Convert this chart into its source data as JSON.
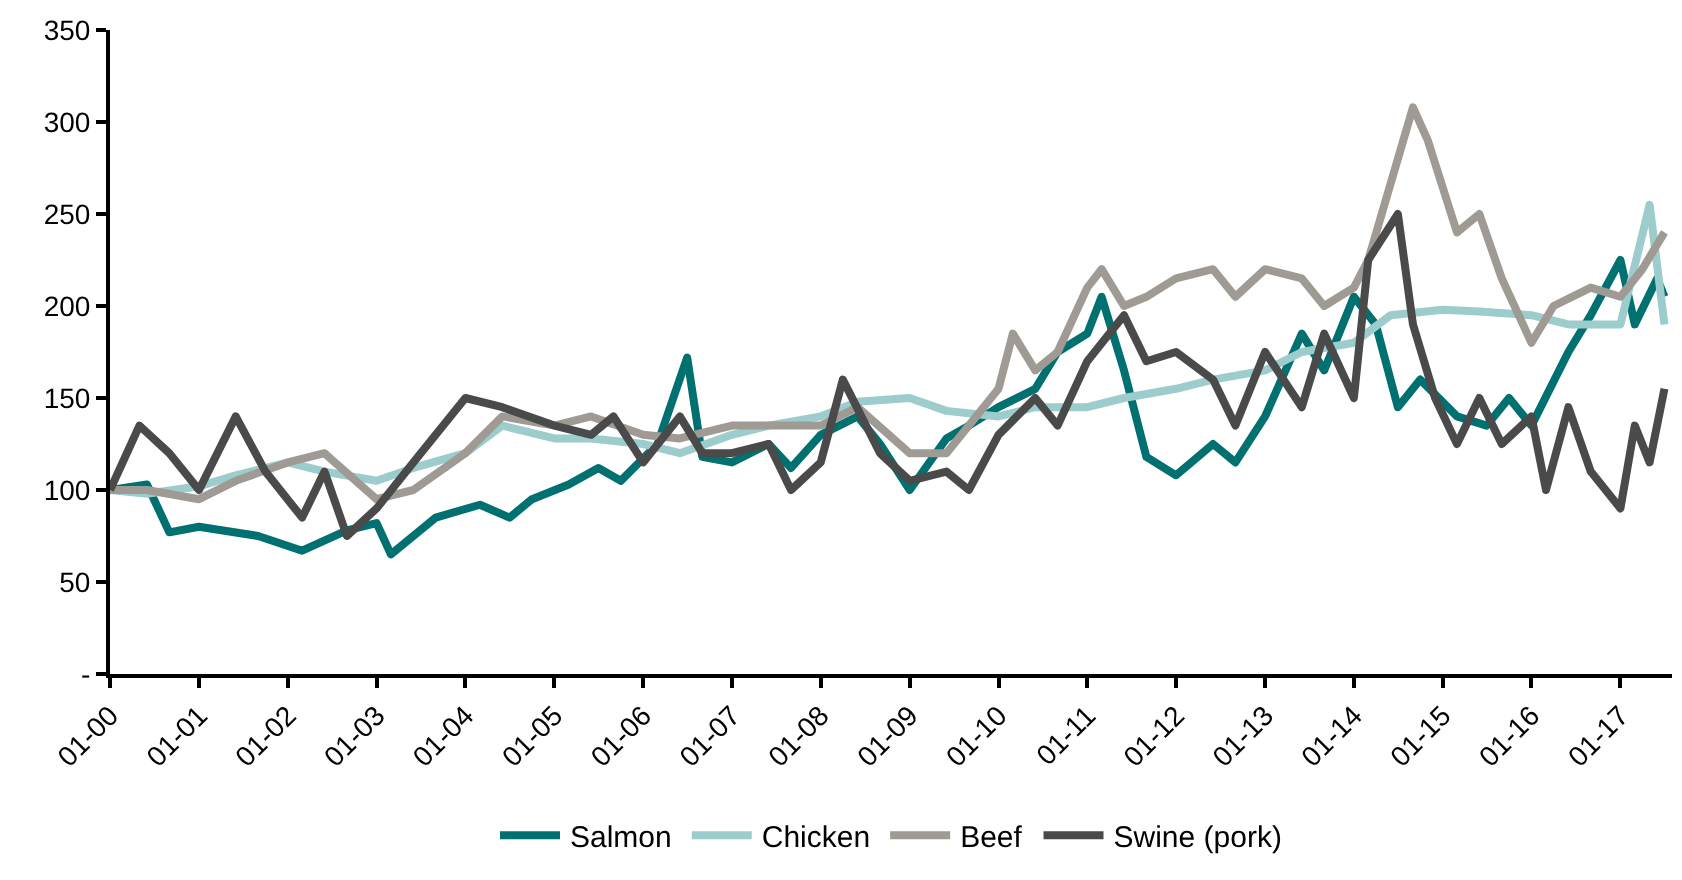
{
  "chart_data": {
    "type": "line",
    "legend": "bottom",
    "marker": "none",
    "line_style": "solid",
    "xlim": [
      "2000-01",
      "2017-08"
    ],
    "xticks": [
      {
        "value": "2000-01",
        "label": "01-00"
      },
      {
        "value": "2001-01",
        "label": "01-01"
      },
      {
        "value": "2002-01",
        "label": "01-02"
      },
      {
        "value": "2003-01",
        "label": "01-03"
      },
      {
        "value": "2004-01",
        "label": "01-04"
      },
      {
        "value": "2005-01",
        "label": "01-05"
      },
      {
        "value": "2006-01",
        "label": "01-06"
      },
      {
        "value": "2007-01",
        "label": "01-07"
      },
      {
        "value": "2008-01",
        "label": "01-08"
      },
      {
        "value": "2009-01",
        "label": "01-09"
      },
      {
        "value": "2010-01",
        "label": "01-10"
      },
      {
        "value": "2011-01",
        "label": "01-11"
      },
      {
        "value": "2012-01",
        "label": "01-12"
      },
      {
        "value": "2013-01",
        "label": "01-13"
      },
      {
        "value": "2014-01",
        "label": "01-14"
      },
      {
        "value": "2015-01",
        "label": "01-15"
      },
      {
        "value": "2016-01",
        "label": "01-16"
      },
      {
        "value": "2017-01",
        "label": "01-17"
      }
    ],
    "ylim": [
      0,
      350
    ],
    "yticks": [
      {
        "value": 0,
        "label": "-"
      },
      50,
      100,
      150,
      200,
      250,
      300,
      350
    ],
    "series": [
      {
        "name": "Salmon",
        "color": "#007070",
        "x": [
          "2000-01",
          "2000-06",
          "2000-09",
          "2001-01",
          "2001-09",
          "2002-03",
          "2002-09",
          "2003-01",
          "2003-03",
          "2003-09",
          "2004-03",
          "2004-07",
          "2004-10",
          "2005-03",
          "2005-07",
          "2005-10",
          "2006-03",
          "2006-07",
          "2006-09",
          "2007-01",
          "2007-06",
          "2007-09",
          "2008-01",
          "2008-06",
          "2008-09",
          "2009-01",
          "2009-06",
          "2009-09",
          "2010-01",
          "2010-06",
          "2010-09",
          "2011-01",
          "2011-03",
          "2011-06",
          "2011-09",
          "2012-01",
          "2012-06",
          "2012-09",
          "2013-01",
          "2013-06",
          "2013-09",
          "2014-01",
          "2014-04",
          "2014-07",
          "2014-10",
          "2015-03",
          "2015-07",
          "2015-10",
          "2016-01",
          "2016-06",
          "2016-09",
          "2017-01",
          "2017-03",
          "2017-06",
          "2017-07"
        ],
        "values": [
          100,
          103,
          77,
          80,
          75,
          67,
          78,
          82,
          65,
          85,
          92,
          85,
          95,
          103,
          112,
          105,
          125,
          172,
          118,
          115,
          125,
          112,
          130,
          140,
          125,
          100,
          128,
          135,
          145,
          155,
          175,
          185,
          205,
          165,
          118,
          108,
          125,
          115,
          140,
          185,
          165,
          205,
          190,
          145,
          160,
          140,
          135,
          150,
          135,
          175,
          195,
          225,
          190,
          215,
          205
        ]
      },
      {
        "name": "Chicken",
        "color": "#9ccccc",
        "x": [
          "2000-01",
          "2000-06",
          "2001-01",
          "2001-06",
          "2002-01",
          "2002-06",
          "2003-01",
          "2003-06",
          "2004-01",
          "2004-06",
          "2005-01",
          "2005-06",
          "2006-01",
          "2006-06",
          "2007-01",
          "2007-06",
          "2008-01",
          "2008-06",
          "2009-01",
          "2009-06",
          "2010-01",
          "2010-06",
          "2011-01",
          "2011-06",
          "2012-01",
          "2012-06",
          "2013-01",
          "2013-06",
          "2014-01",
          "2014-06",
          "2015-01",
          "2015-06",
          "2016-01",
          "2016-06",
          "2017-01",
          "2017-05",
          "2017-07"
        ],
        "values": [
          100,
          98,
          102,
          108,
          115,
          110,
          105,
          112,
          120,
          135,
          128,
          128,
          125,
          120,
          130,
          135,
          140,
          148,
          150,
          143,
          140,
          145,
          145,
          150,
          155,
          160,
          165,
          175,
          180,
          195,
          198,
          197,
          195,
          190,
          190,
          255,
          190
        ]
      },
      {
        "name": "Beef",
        "color": "#a09a94",
        "x": [
          "2000-01",
          "2000-06",
          "2001-01",
          "2001-06",
          "2002-01",
          "2002-06",
          "2003-01",
          "2003-06",
          "2004-01",
          "2004-06",
          "2005-01",
          "2005-06",
          "2006-01",
          "2006-06",
          "2007-01",
          "2007-06",
          "2008-01",
          "2008-06",
          "2009-01",
          "2009-06",
          "2010-01",
          "2010-03",
          "2010-06",
          "2010-09",
          "2011-01",
          "2011-03",
          "2011-06",
          "2011-09",
          "2012-01",
          "2012-06",
          "2012-09",
          "2013-01",
          "2013-06",
          "2013-09",
          "2014-01",
          "2014-03",
          "2014-09",
          "2014-11",
          "2015-03",
          "2015-06",
          "2015-09",
          "2016-01",
          "2016-04",
          "2016-09",
          "2017-01",
          "2017-04",
          "2017-07"
        ],
        "values": [
          100,
          100,
          95,
          105,
          115,
          120,
          95,
          100,
          120,
          140,
          135,
          140,
          130,
          128,
          135,
          135,
          135,
          145,
          120,
          120,
          155,
          185,
          165,
          175,
          210,
          220,
          200,
          205,
          215,
          220,
          205,
          220,
          215,
          200,
          210,
          225,
          308,
          290,
          240,
          250,
          215,
          180,
          200,
          210,
          205,
          220,
          240
        ]
      },
      {
        "name": "Swine (pork)",
        "color": "#4a4a4a",
        "x": [
          "2000-01",
          "2000-05",
          "2000-09",
          "2001-01",
          "2001-06",
          "2001-10",
          "2002-03",
          "2002-06",
          "2002-09",
          "2003-01",
          "2003-06",
          "2004-01",
          "2004-06",
          "2005-01",
          "2005-06",
          "2005-09",
          "2006-01",
          "2006-06",
          "2006-09",
          "2007-01",
          "2007-06",
          "2007-09",
          "2008-01",
          "2008-04",
          "2008-09",
          "2009-01",
          "2009-06",
          "2009-09",
          "2010-01",
          "2010-06",
          "2010-09",
          "2011-01",
          "2011-06",
          "2011-09",
          "2012-01",
          "2012-06",
          "2012-09",
          "2013-01",
          "2013-06",
          "2013-09",
          "2014-01",
          "2014-03",
          "2014-07",
          "2014-09",
          "2014-12",
          "2015-03",
          "2015-06",
          "2015-09",
          "2016-01",
          "2016-03",
          "2016-06",
          "2016-09",
          "2017-01",
          "2017-03",
          "2017-05",
          "2017-07"
        ],
        "values": [
          100,
          135,
          120,
          100,
          140,
          110,
          85,
          110,
          75,
          90,
          115,
          150,
          145,
          135,
          130,
          140,
          115,
          140,
          120,
          120,
          125,
          100,
          115,
          160,
          120,
          105,
          110,
          100,
          130,
          150,
          135,
          170,
          195,
          170,
          175,
          160,
          135,
          175,
          145,
          185,
          150,
          225,
          250,
          190,
          150,
          125,
          150,
          125,
          140,
          100,
          145,
          110,
          90,
          135,
          115,
          155
        ]
      }
    ]
  }
}
